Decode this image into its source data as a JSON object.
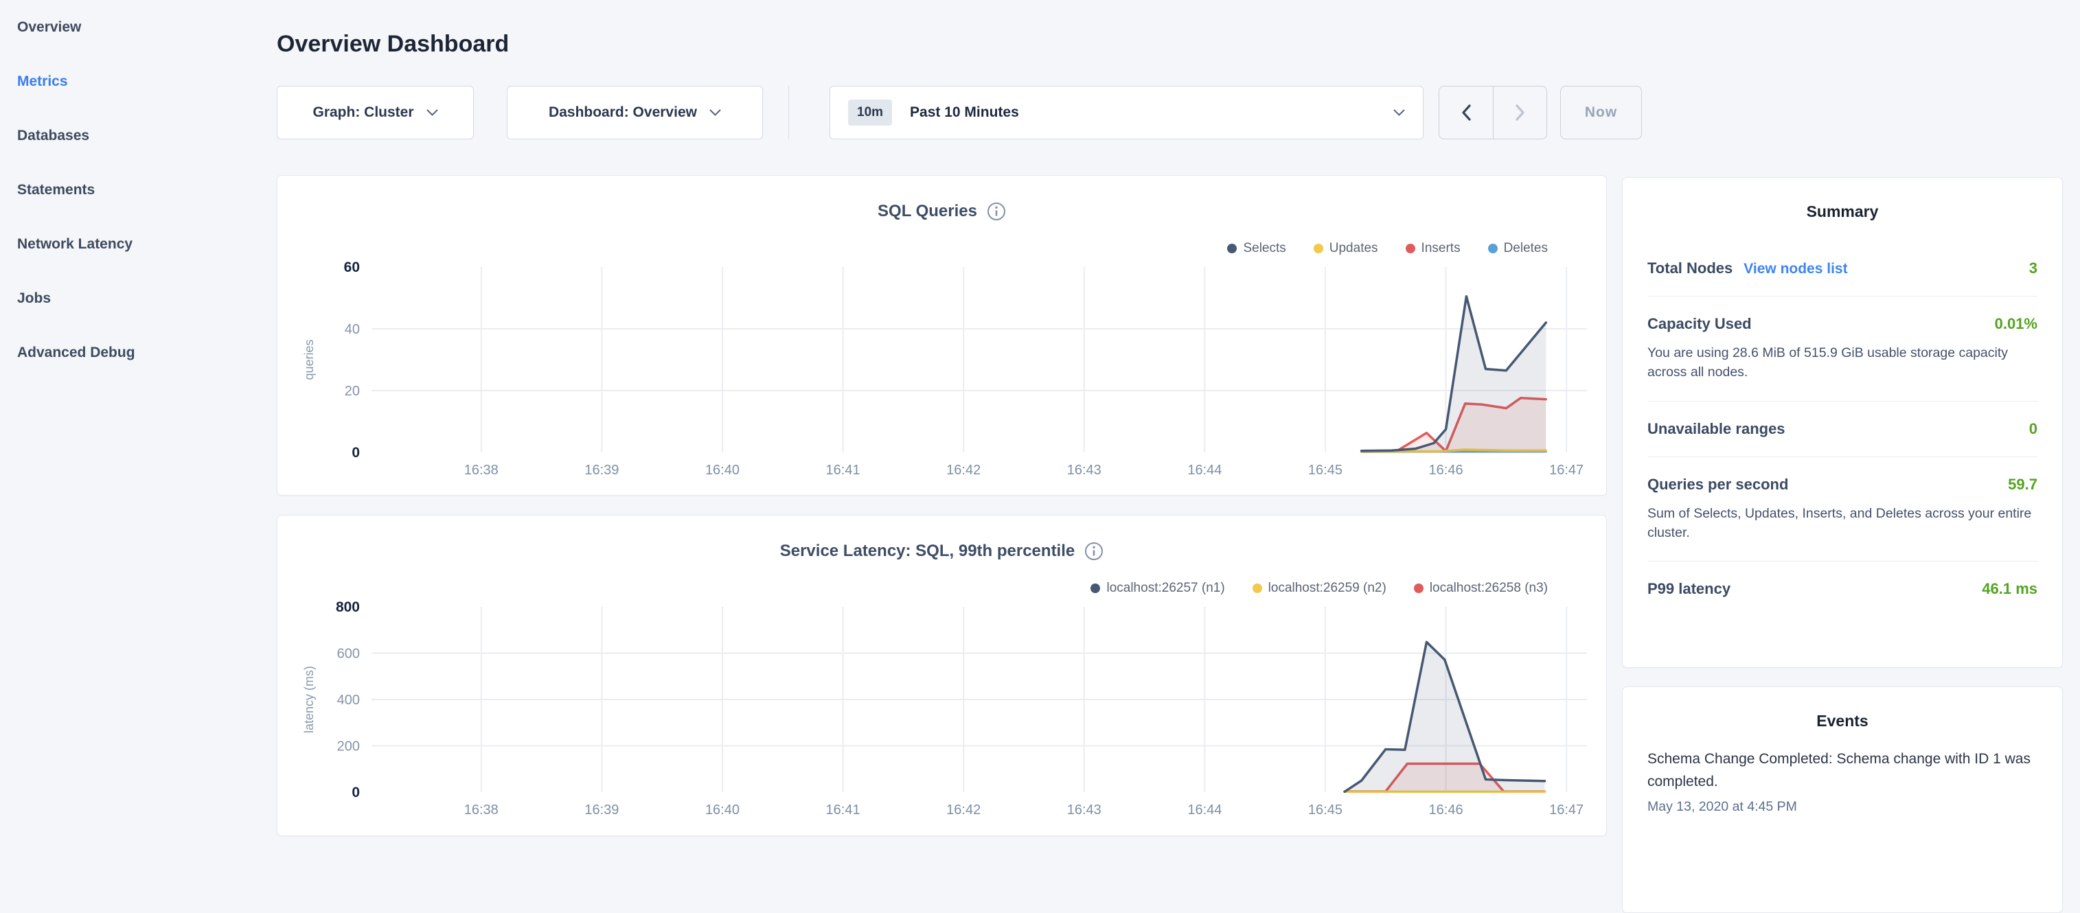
{
  "sidebar": {
    "items": [
      {
        "label": "Overview",
        "active": false
      },
      {
        "label": "Metrics",
        "active": true
      },
      {
        "label": "Databases",
        "active": false
      },
      {
        "label": "Statements",
        "active": false
      },
      {
        "label": "Network Latency",
        "active": false
      },
      {
        "label": "Jobs",
        "active": false
      },
      {
        "label": "Advanced Debug",
        "active": false
      }
    ]
  },
  "header": {
    "title": "Overview Dashboard"
  },
  "controls": {
    "graph_dropdown": {
      "text": "Graph: Cluster"
    },
    "dashboard_dropdown": {
      "text": "Dashboard: Overview"
    },
    "time_picker": {
      "badge": "10m",
      "label": "Past 10 Minutes"
    },
    "prev_enabled": true,
    "next_enabled": false,
    "now_label": "Now"
  },
  "colors": {
    "accent_blue": "#3a7ded",
    "link_blue": "#3d85f2",
    "value_green": "#54a320",
    "series_navy": "#475872",
    "series_yellow": "#f2c94c",
    "series_red": "#e05c5c",
    "series_blue": "#57a0d8",
    "gridline": "#e9edf2",
    "tick_gray": "#8494a9",
    "tick_dark": "#16233f"
  },
  "chart_data": [
    {
      "type": "area",
      "title": "SQL Queries",
      "ylabel": "queries",
      "ylim": [
        0,
        60
      ],
      "yticks": [
        0,
        20,
        40,
        60
      ],
      "x_domain": [
        37.09,
        47.17
      ],
      "xticks": [
        [
          38,
          "16:38"
        ],
        [
          39,
          "16:39"
        ],
        [
          40,
          "16:40"
        ],
        [
          41,
          "16:41"
        ],
        [
          42,
          "16:42"
        ],
        [
          43,
          "16:43"
        ],
        [
          44,
          "16:44"
        ],
        [
          45,
          "16:45"
        ],
        [
          46,
          "16:46"
        ],
        [
          47,
          "16:47"
        ]
      ],
      "legend_position": "top-right",
      "grid": true,
      "series": [
        {
          "name": "Selects",
          "color": "#475872",
          "points": [
            [
              45.3,
              0.5
            ],
            [
              45.55,
              0.6
            ],
            [
              45.75,
              1.2
            ],
            [
              45.9,
              3
            ],
            [
              46.0,
              7.5
            ],
            [
              46.17,
              50.5
            ],
            [
              46.33,
              27
            ],
            [
              46.5,
              26.5
            ],
            [
              46.83,
              42
            ]
          ]
        },
        {
          "name": "Updates",
          "color": "#f2c94c",
          "points": [
            [
              45.3,
              0.3
            ],
            [
              45.95,
              0.3
            ],
            [
              46.15,
              0.9
            ],
            [
              46.5,
              0.6
            ],
            [
              46.83,
              0.6
            ]
          ]
        },
        {
          "name": "Inserts",
          "color": "#e05c5c",
          "points": [
            [
              45.3,
              0.3
            ],
            [
              45.6,
              0.6
            ],
            [
              45.84,
              6.3
            ],
            [
              46.0,
              0.4
            ],
            [
              46.16,
              15.8
            ],
            [
              46.3,
              15.5
            ],
            [
              46.5,
              14.3
            ],
            [
              46.62,
              17.6
            ],
            [
              46.83,
              17.2
            ]
          ]
        },
        {
          "name": "Deletes",
          "color": "#57a0d8",
          "points": [
            [
              45.3,
              0.2
            ],
            [
              46.83,
              0.3
            ]
          ]
        }
      ]
    },
    {
      "type": "area",
      "title": "Service Latency: SQL, 99th percentile",
      "ylabel": "latency (ms)",
      "ylim": [
        0,
        800
      ],
      "yticks": [
        0,
        200,
        400,
        600,
        800
      ],
      "x_domain": [
        37.09,
        47.17
      ],
      "xticks": [
        [
          38,
          "16:38"
        ],
        [
          39,
          "16:39"
        ],
        [
          40,
          "16:40"
        ],
        [
          41,
          "16:41"
        ],
        [
          42,
          "16:42"
        ],
        [
          43,
          "16:43"
        ],
        [
          44,
          "16:44"
        ],
        [
          45,
          "16:45"
        ],
        [
          46,
          "16:46"
        ],
        [
          47,
          "16:47"
        ]
      ],
      "legend_position": "top-right",
      "grid": true,
      "series": [
        {
          "name": "localhost:26257 (n1)",
          "color": "#475872",
          "points": [
            [
              45.16,
              2
            ],
            [
              45.3,
              50
            ],
            [
              45.5,
              185
            ],
            [
              45.66,
              183
            ],
            [
              45.84,
              648
            ],
            [
              45.99,
              572
            ],
            [
              46.33,
              55
            ],
            [
              46.5,
              52
            ],
            [
              46.82,
              48
            ]
          ]
        },
        {
          "name": "localhost:26259 (n2)",
          "color": "#f2c94c",
          "points": [
            [
              45.16,
              2
            ],
            [
              46.82,
              2
            ]
          ]
        },
        {
          "name": "localhost:26258 (n3)",
          "color": "#e05c5c",
          "points": [
            [
              45.16,
              3
            ],
            [
              45.5,
              3
            ],
            [
              45.68,
              123
            ],
            [
              46.28,
              123
            ],
            [
              46.48,
              3
            ],
            [
              46.82,
              3
            ]
          ]
        }
      ]
    }
  ],
  "summary": {
    "title": "Summary",
    "rows": [
      {
        "label": "Total Nodes",
        "link": "View nodes list",
        "value": "3"
      },
      {
        "label": "Capacity Used",
        "value": "0.01%",
        "description": "You are using 28.6 MiB of 515.9 GiB usable storage capacity across all nodes."
      },
      {
        "label": "Unavailable ranges",
        "value": "0"
      },
      {
        "label": "Queries per second",
        "value": "59.7",
        "description": "Sum of Selects, Updates, Inserts, and Deletes across your entire cluster."
      },
      {
        "label": "P99 latency",
        "value": "46.1 ms"
      }
    ]
  },
  "events": {
    "title": "Events",
    "items": [
      {
        "text": "Schema Change Completed: Schema change with ID 1 was completed.",
        "timestamp": "May 13, 2020 at 4:45 PM"
      }
    ]
  }
}
